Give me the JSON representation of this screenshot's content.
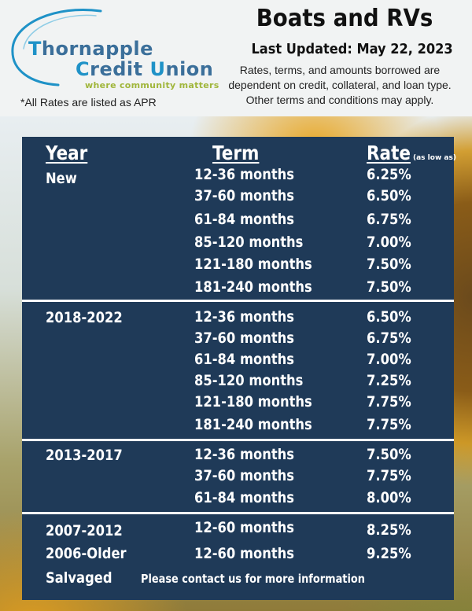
{
  "header": {
    "logo": {
      "line1_initial": "T",
      "line1_rest": "hornapple",
      "line2_initial1": "C",
      "line2_mid": "redit ",
      "line2_initial2": "U",
      "line2_rest": "nion",
      "tagline": "where community matters"
    },
    "apr_note": "*All Rates are listed as APR",
    "title": "Boats and RVs",
    "last_updated": "Last Updated: May 22, 2023",
    "disclaimer": "Rates, terms, and amounts borrowed are dependent on credit, collateral, and loan type. Other terms and conditions may apply."
  },
  "table": {
    "col_year": "Year",
    "col_term": "Term",
    "col_rate": "Rate",
    "rate_note": "(as low as)",
    "groups": [
      {
        "year": "New",
        "rows": [
          {
            "term": "12-36 months",
            "rate": "6.25%"
          },
          {
            "term": "37-60 months",
            "rate": "6.50%"
          },
          {
            "term": "61-84 months",
            "rate": "6.75%"
          },
          {
            "term": "85-120 months",
            "rate": "7.00%"
          },
          {
            "term": "121-180 months",
            "rate": "7.50%"
          },
          {
            "term": "181-240 months",
            "rate": "7.50%"
          }
        ]
      },
      {
        "year": "2018-2022",
        "rows": [
          {
            "term": "12-36 months",
            "rate": "6.50%"
          },
          {
            "term": "37-60 months",
            "rate": "6.75%"
          },
          {
            "term": "61-84 months",
            "rate": "7.00%"
          },
          {
            "term": "85-120 months",
            "rate": "7.25%"
          },
          {
            "term": "121-180 months",
            "rate": "7.75%"
          },
          {
            "term": "181-240 months",
            "rate": "7.75%"
          }
        ]
      },
      {
        "year": "2013-2017",
        "rows": [
          {
            "term": "12-36 months",
            "rate": "7.50%"
          },
          {
            "term": "37-60 months",
            "rate": "7.75%"
          },
          {
            "term": "61-84 months",
            "rate": "8.00%"
          }
        ]
      },
      {
        "year": "2007-2012",
        "rows": [
          {
            "term": "12-60 months",
            "rate": "8.25%"
          }
        ]
      },
      {
        "year": "2006-Older",
        "rows": [
          {
            "term": "12-60 months",
            "rate": "9.25%"
          }
        ]
      }
    ],
    "salvaged": {
      "year": "Salvaged",
      "text": "Please contact us for more information"
    }
  },
  "colors": {
    "panel_bg": "#1f3a58",
    "logo_blue": "#3b6f9a",
    "logo_cyan": "#1f92c7",
    "tagline_green": "#a0b63b"
  }
}
